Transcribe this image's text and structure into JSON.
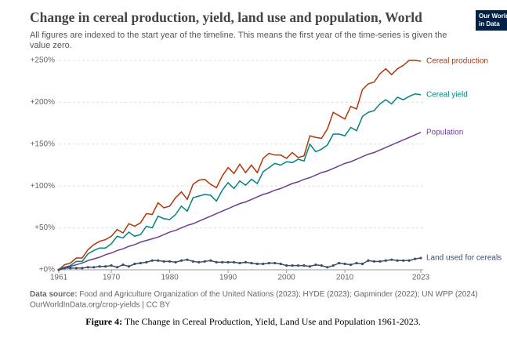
{
  "chart_data": {
    "type": "line",
    "title": "Change in cereal production, yield, land use and population, World",
    "subtitle": [
      "All figures are indexed to the start year of the timeline. This means the first year of the time-series is given the",
      "value zero."
    ],
    "logo": [
      "Our World",
      "in Data"
    ],
    "x": [
      1961,
      1962,
      1963,
      1964,
      1965,
      1966,
      1967,
      1968,
      1969,
      1970,
      1971,
      1972,
      1973,
      1974,
      1975,
      1976,
      1977,
      1978,
      1979,
      1980,
      1981,
      1982,
      1983,
      1984,
      1985,
      1986,
      1987,
      1988,
      1989,
      1990,
      1991,
      1992,
      1993,
      1994,
      1995,
      1996,
      1997,
      1998,
      1999,
      2000,
      2001,
      2002,
      2003,
      2004,
      2005,
      2006,
      2007,
      2008,
      2009,
      2010,
      2011,
      2012,
      2013,
      2014,
      2015,
      2016,
      2017,
      2018,
      2019,
      2020,
      2021,
      2022,
      2023
    ],
    "xlim": [
      1961,
      2023
    ],
    "xticks": [
      1961,
      1970,
      1980,
      1990,
      2000,
      2010,
      2023
    ],
    "ylim": [
      0,
      250
    ],
    "yticks": [
      {
        "value": 0,
        "label": "+0%"
      },
      {
        "value": 50,
        "label": "+50%"
      },
      {
        "value": 100,
        "label": "+100%"
      },
      {
        "value": 150,
        "label": "+150%"
      },
      {
        "value": 200,
        "label": "+200%"
      },
      {
        "value": 250,
        "label": "+250%"
      }
    ],
    "grid": true,
    "series": [
      {
        "name": "Cereal production",
        "color": "#b13507",
        "markers": false,
        "values": [
          0,
          6,
          8,
          14,
          14,
          24,
          30,
          34,
          36,
          40,
          48,
          44,
          55,
          52,
          56,
          67,
          66,
          80,
          74,
          76,
          86,
          93,
          84,
          102,
          107,
          108,
          102,
          98,
          112,
          122,
          115,
          126,
          116,
          125,
          116,
          133,
          139,
          137,
          137,
          133,
          140,
          134,
          136,
          160,
          158,
          157,
          168,
          188,
          184,
          180,
          195,
          192,
          215,
          222,
          224,
          234,
          240,
          233,
          240,
          244,
          250,
          250,
          249
        ]
      },
      {
        "name": "Cereal yield",
        "color": "#00847e",
        "markers": false,
        "values": [
          0,
          3,
          5,
          10,
          10,
          19,
          23,
          26,
          26,
          31,
          40,
          38,
          45,
          40,
          42,
          52,
          50,
          64,
          61,
          60,
          66,
          76,
          70,
          86,
          88,
          90,
          89,
          82,
          95,
          104,
          97,
          106,
          101,
          108,
          103,
          117,
          122,
          127,
          125,
          129,
          128,
          132,
          130,
          150,
          141,
          144,
          149,
          162,
          162,
          160,
          170,
          166,
          183,
          188,
          190,
          198,
          203,
          198,
          206,
          203,
          207,
          210,
          209
        ]
      },
      {
        "name": "Population",
        "color": "#6d3e91",
        "markers": false,
        "values": [
          0,
          2,
          4,
          6,
          8,
          11,
          13,
          15,
          18,
          20,
          23,
          25,
          28,
          30,
          33,
          35,
          37,
          39,
          42,
          45,
          47,
          50,
          53,
          55,
          58,
          61,
          64,
          67,
          70,
          73,
          76,
          79,
          81,
          84,
          87,
          90,
          92,
          95,
          97,
          100,
          103,
          105,
          108,
          110,
          113,
          116,
          118,
          121,
          124,
          127,
          129,
          132,
          135,
          138,
          140,
          143,
          146,
          149,
          152,
          155,
          158,
          161,
          164
        ]
      },
      {
        "name": "Land used for cereals",
        "color": "#3c4e66",
        "markers": true,
        "values": [
          0,
          2,
          2,
          2,
          2,
          3,
          3,
          4,
          4,
          5,
          3,
          6,
          4,
          7,
          8,
          9,
          11,
          11,
          10,
          10,
          9,
          11,
          12,
          10,
          9,
          10,
          11,
          9,
          9,
          9,
          9,
          8,
          9,
          8,
          7,
          7,
          8,
          8,
          7,
          5,
          5,
          5,
          5,
          4,
          6,
          5,
          3,
          5,
          8,
          7,
          6,
          8,
          7,
          11,
          10,
          10,
          11,
          12,
          11,
          11,
          11,
          13,
          14
        ]
      }
    ],
    "source_label": "Data source:",
    "source": "Food and Agriculture Organization of the United Nations (2023); HYDE (2023); Gapminder (2022); UN WPP (2024)",
    "source_line2": "OurWorldInData.org/crop-yields | CC BY",
    "caption_label": "Figure 4:",
    "caption": "The Change in Cereal Production, Yield, Land Use and Population 1961-2023."
  }
}
